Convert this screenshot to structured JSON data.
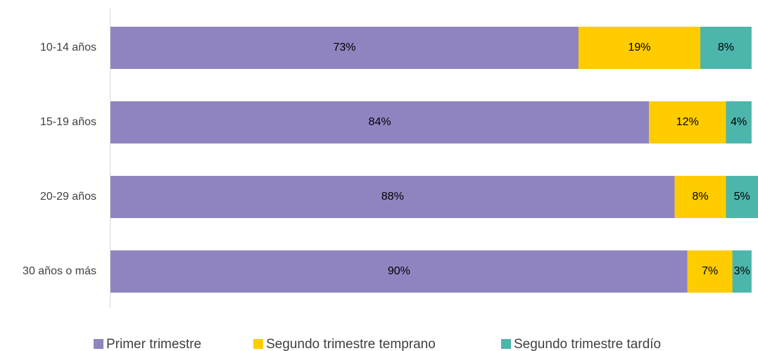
{
  "chart_data": {
    "type": "stacked-barh",
    "categories": [
      "10-14 años",
      "15-19 años",
      "20-29 años",
      "30 años o más"
    ],
    "series": [
      {
        "name": "Primer trimestre",
        "color": "#9084c0",
        "values": [
          73,
          84,
          88,
          90
        ],
        "value_labels": [
          "73%",
          "84%",
          "88%",
          "90%"
        ]
      },
      {
        "name": "Segundo trimestre temprano",
        "color": "#ffcc00",
        "values": [
          19,
          12,
          8,
          7
        ],
        "value_labels": [
          "19%",
          "12%",
          "8%",
          "7%"
        ]
      },
      {
        "name": "Segundo trimestre tardío",
        "color": "#4db6ac",
        "values": [
          8,
          4,
          5,
          3
        ],
        "value_labels": [
          "8%",
          "4%",
          "5%",
          "3%"
        ]
      }
    ],
    "legend": "bottom"
  }
}
